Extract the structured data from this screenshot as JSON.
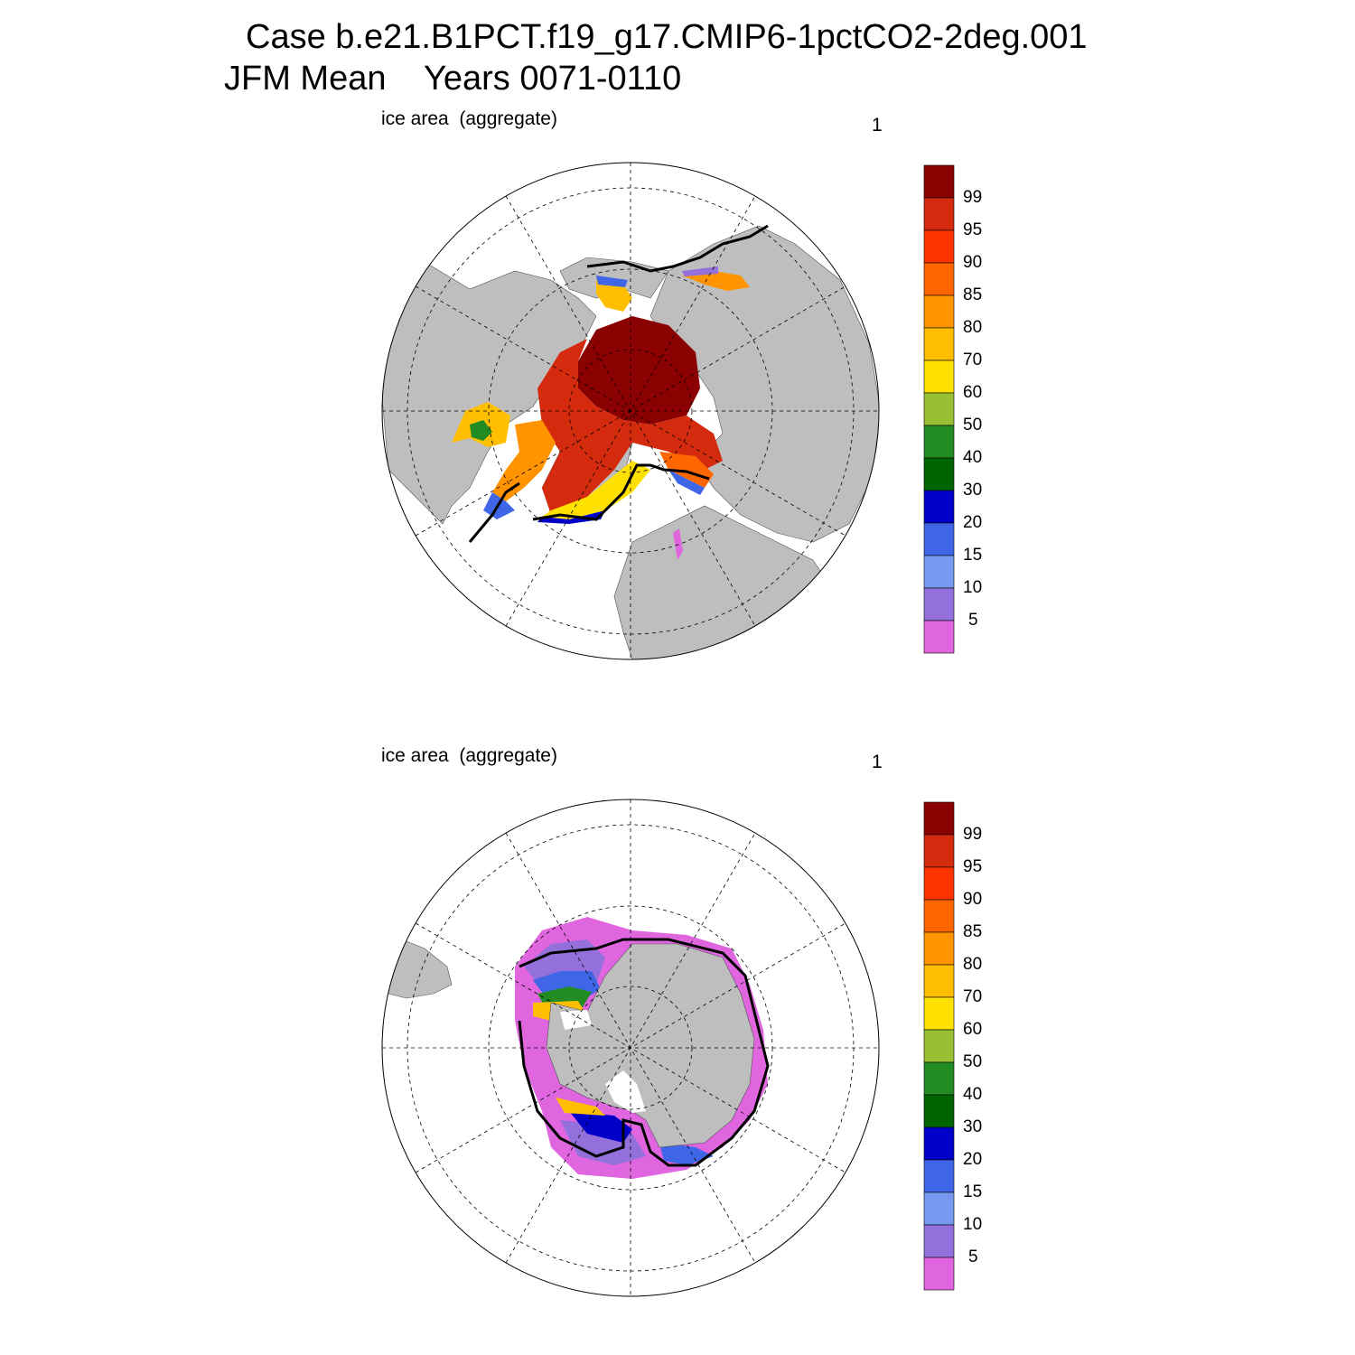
{
  "title": {
    "line1": "Case b.e21.B1PCT.f19_g17.CMIP6-1pctCO2-2deg.001",
    "line2": "JFM Mean    Years 0071-0110"
  },
  "panels": [
    {
      "id": "north",
      "label": "ice area  (aggregate)",
      "number": "1"
    },
    {
      "id": "south",
      "label": "ice area  (aggregate)",
      "number": "1"
    }
  ],
  "colorbar": {
    "labels": [
      "99",
      "95",
      "90",
      "85",
      "80",
      "70",
      "60",
      "50",
      "40",
      "30",
      "20",
      "15",
      "10",
      "5"
    ],
    "colors": [
      "#8b0000",
      "#d42a0e",
      "#ff3300",
      "#ff6600",
      "#ff9400",
      "#ffbf00",
      "#ffe000",
      "#99bf33",
      "#228b22",
      "#006400",
      "#0000c8",
      "#3f66e6",
      "#7799f0",
      "#9370db",
      "#e066e0"
    ]
  },
  "map_colors": {
    "land": "#bebebe",
    "ocean": "#ffffff",
    "contour": "#000000"
  }
}
